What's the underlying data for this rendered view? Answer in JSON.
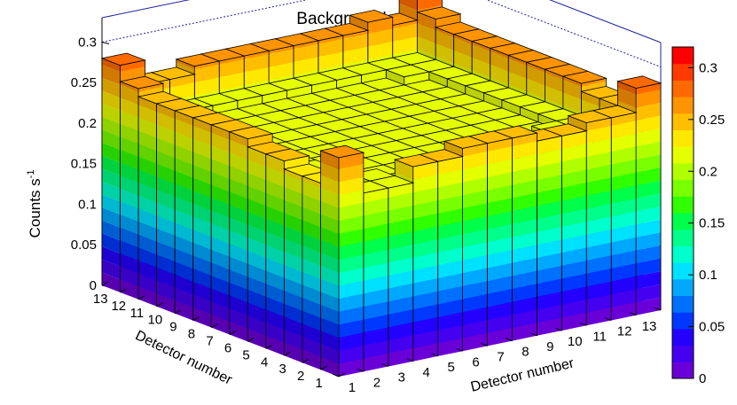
{
  "chart_data": {
    "type": "lego3d",
    "title": "Background",
    "zlabel_main": "Counts s",
    "zlabel_sup": "-1",
    "xlabel": "Detector number",
    "ylabel": "Detector number",
    "x_tick_labels": [
      "1",
      "2",
      "3",
      "4",
      "5",
      "6",
      "7",
      "8",
      "9",
      "10",
      "11",
      "12",
      "13"
    ],
    "y_tick_labels": [
      "1",
      "2",
      "3",
      "4",
      "5",
      "6",
      "7",
      "8",
      "9",
      "10",
      "11",
      "12",
      "13"
    ],
    "z_tick_labels": [
      "0",
      "0.05",
      "0.1",
      "0.15",
      "0.2",
      "0.25",
      "0.3"
    ],
    "zlim": [
      0,
      0.33
    ],
    "colorbar": {
      "range": [
        0,
        0.32
      ],
      "tick_labels": [
        "0",
        "0.05",
        "0.1",
        "0.15",
        "0.2",
        "0.25",
        "0.3"
      ],
      "palette": [
        "#6a00d8",
        "#4500f0",
        "#2400ff",
        "#0038ff",
        "#0070ff",
        "#00a8ff",
        "#00e0ff",
        "#00ffcc",
        "#00ff8a",
        "#00ff4a",
        "#30ff00",
        "#78ff00",
        "#b0ff00",
        "#e4ff00",
        "#ffe800",
        "#ffbe00",
        "#ff9400",
        "#ff6a00",
        "#ff3a00",
        "#ff0000"
      ]
    },
    "cells": [
      [
        0.27,
        0.22,
        0.22,
        0.24,
        0.24,
        0.25,
        0.25,
        0.25,
        0.24,
        0.24,
        0.25,
        0.25,
        0.28
      ],
      [
        0.23,
        0.21,
        0.22,
        0.21,
        0.22,
        0.22,
        0.21,
        0.21,
        0.21,
        0.22,
        0.22,
        0.22,
        0.25
      ],
      [
        0.23,
        0.22,
        0.21,
        0.21,
        0.21,
        0.21,
        0.21,
        0.21,
        0.21,
        0.21,
        0.22,
        0.22,
        0.25
      ],
      [
        0.24,
        0.22,
        0.21,
        0.21,
        0.21,
        0.21,
        0.21,
        0.21,
        0.21,
        0.21,
        0.21,
        0.22,
        0.26
      ],
      [
        0.24,
        0.22,
        0.21,
        0.21,
        0.21,
        0.21,
        0.21,
        0.21,
        0.21,
        0.21,
        0.21,
        0.22,
        0.26
      ],
      [
        0.25,
        0.22,
        0.21,
        0.21,
        0.21,
        0.21,
        0.21,
        0.21,
        0.21,
        0.21,
        0.21,
        0.22,
        0.26
      ],
      [
        0.25,
        0.22,
        0.21,
        0.21,
        0.21,
        0.21,
        0.21,
        0.21,
        0.21,
        0.21,
        0.21,
        0.22,
        0.26
      ],
      [
        0.25,
        0.22,
        0.21,
        0.21,
        0.21,
        0.21,
        0.21,
        0.21,
        0.21,
        0.21,
        0.21,
        0.22,
        0.26
      ],
      [
        0.25,
        0.22,
        0.21,
        0.21,
        0.21,
        0.21,
        0.21,
        0.21,
        0.21,
        0.21,
        0.21,
        0.22,
        0.26
      ],
      [
        0.25,
        0.22,
        0.21,
        0.21,
        0.21,
        0.21,
        0.21,
        0.21,
        0.21,
        0.21,
        0.21,
        0.22,
        0.26
      ],
      [
        0.25,
        0.22,
        0.21,
        0.21,
        0.21,
        0.21,
        0.21,
        0.21,
        0.21,
        0.21,
        0.22,
        0.22,
        0.26
      ],
      [
        0.26,
        0.22,
        0.22,
        0.22,
        0.22,
        0.22,
        0.22,
        0.22,
        0.22,
        0.22,
        0.22,
        0.22,
        0.27
      ],
      [
        0.28,
        0.25,
        0.25,
        0.26,
        0.26,
        0.26,
        0.26,
        0.26,
        0.26,
        0.26,
        0.27,
        0.26,
        0.32
      ]
    ]
  }
}
